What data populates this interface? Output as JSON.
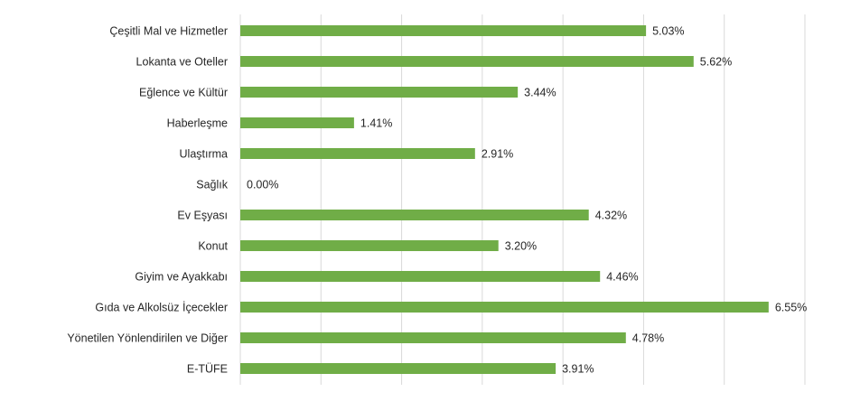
{
  "colors": {
    "bar": "#70ad47",
    "grid": "#d9d9d9",
    "text": "#262626"
  },
  "chart_data": {
    "type": "bar",
    "orientation": "horizontal",
    "categories": [
      "Çeşitli Mal ve Hizmetler",
      "Lokanta ve Oteller",
      "Eğlence ve Kültür",
      "Haberleşme",
      "Ulaştırma",
      "Sağlık",
      "Ev Eşyası",
      "Konut",
      "Giyim ve Ayakkabı",
      "Gıda ve Alkolsüz İçecekler",
      "Yönetilen Yönlendirilen ve Diğer",
      "E-TÜFE"
    ],
    "values": [
      5.03,
      5.62,
      3.44,
      1.41,
      2.91,
      0.0,
      4.32,
      3.2,
      4.46,
      6.55,
      4.78,
      3.91
    ],
    "value_labels": [
      "5.03%",
      "5.62%",
      "3.44%",
      "1.41%",
      "2.91%",
      "0.00%",
      "4.32%",
      "3.20%",
      "4.46%",
      "6.55%",
      "4.78%",
      "3.91%"
    ],
    "xlim": [
      0,
      7
    ],
    "grid": true,
    "legend": "none"
  }
}
